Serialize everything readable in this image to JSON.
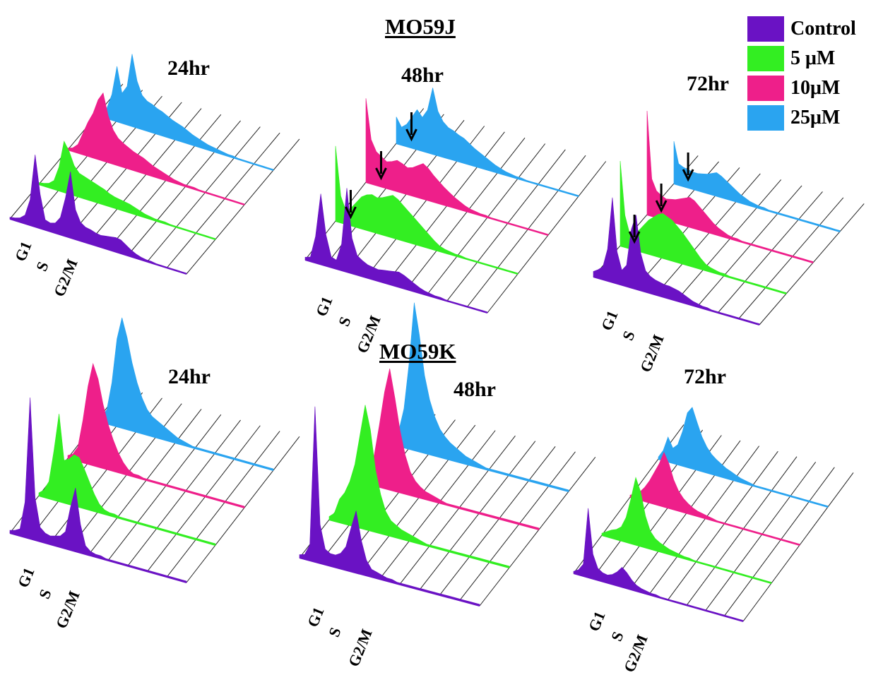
{
  "figure": {
    "titles": [
      "MO59J",
      "MO59K"
    ],
    "legend": [
      {
        "label": "Control",
        "color": "#6a12c4"
      },
      {
        "label": "5 μM",
        "color": "#33ee22"
      },
      {
        "label": "10μM",
        "color": "#ee1f8a"
      },
      {
        "label": "25μM",
        "color": "#2aa4f0"
      }
    ],
    "phase_labels": [
      "G1",
      "S",
      "G2/M"
    ]
  },
  "chart_data": [
    {
      "type": "area",
      "cell_line": "MO59J",
      "time_label": "24hr",
      "arrows": false,
      "series": [
        {
          "name": "Control",
          "values": [
            0.02,
            0.03,
            0.05,
            0.1,
            0.3,
            0.85,
            0.4,
            0.12,
            0.1,
            0.12,
            0.2,
            0.45,
            0.78,
            0.35,
            0.22,
            0.18,
            0.17,
            0.15,
            0.14,
            0.15,
            0.16,
            0.17,
            0.16,
            0.12,
            0.08,
            0.05,
            0.03,
            0.02,
            0.02,
            0.01,
            0.01,
            0.01,
            0.01,
            0.01,
            0.01,
            0.01
          ]
        },
        {
          "name": "5 μM",
          "values": [
            0.02,
            0.03,
            0.05,
            0.1,
            0.28,
            0.6,
            0.5,
            0.35,
            0.28,
            0.26,
            0.24,
            0.22,
            0.2,
            0.18,
            0.15,
            0.13,
            0.12,
            0.11,
            0.1,
            0.08,
            0.06,
            0.04,
            0.03,
            0.02,
            0.02,
            0.02,
            0.01,
            0.01,
            0.01,
            0.01,
            0.01,
            0.01,
            0.01,
            0.01,
            0.01,
            0.01
          ]
        },
        {
          "name": "10μM",
          "values": [
            0.02,
            0.04,
            0.1,
            0.25,
            0.4,
            0.52,
            0.7,
            0.8,
            0.55,
            0.4,
            0.32,
            0.28,
            0.25,
            0.22,
            0.2,
            0.18,
            0.15,
            0.12,
            0.1,
            0.08,
            0.06,
            0.04,
            0.03,
            0.02,
            0.02,
            0.02,
            0.01,
            0.01,
            0.01,
            0.01,
            0.01,
            0.01,
            0.01,
            0.01,
            0.01,
            0.01
          ]
        },
        {
          "name": "25μM",
          "values": [
            0.02,
            0.05,
            0.12,
            0.3,
            0.65,
            0.35,
            0.45,
            0.85,
            0.55,
            0.4,
            0.35,
            0.33,
            0.3,
            0.28,
            0.25,
            0.22,
            0.2,
            0.18,
            0.15,
            0.12,
            0.1,
            0.08,
            0.06,
            0.05,
            0.04,
            0.03,
            0.02,
            0.02,
            0.01,
            0.01,
            0.01,
            0.01,
            0.01,
            0.01,
            0.01,
            0.01
          ]
        }
      ]
    },
    {
      "type": "area",
      "cell_line": "MO59J",
      "time_label": "48hr",
      "arrows": true,
      "series": [
        {
          "name": "Control",
          "values": [
            0.03,
            0.05,
            0.3,
            0.8,
            0.35,
            0.12,
            0.1,
            0.3,
            0.95,
            0.4,
            0.22,
            0.18,
            0.15,
            0.14,
            0.13,
            0.14,
            0.15,
            0.16,
            0.17,
            0.15,
            0.12,
            0.09,
            0.06,
            0.04,
            0.03,
            0.02,
            0.02,
            0.01,
            0.01,
            0.01,
            0.01,
            0.01,
            0.01,
            0.01,
            0.01,
            0.01
          ]
        },
        {
          "name": "5 μM",
          "values": [
            0.85,
            0.3,
            0.15,
            0.2,
            0.28,
            0.36,
            0.4,
            0.42,
            0.4,
            0.42,
            0.45,
            0.48,
            0.45,
            0.4,
            0.35,
            0.3,
            0.25,
            0.2,
            0.15,
            0.1,
            0.06,
            0.04,
            0.03,
            0.02,
            0.02,
            0.01,
            0.01,
            0.01,
            0.01,
            0.01,
            0.01,
            0.01,
            0.01,
            0.01,
            0.01,
            0.01
          ]
        },
        {
          "name": "10μM",
          "values": [
            0.95,
            0.5,
            0.38,
            0.34,
            0.3,
            0.32,
            0.35,
            0.33,
            0.3,
            0.32,
            0.36,
            0.4,
            0.36,
            0.3,
            0.25,
            0.2,
            0.16,
            0.12,
            0.09,
            0.06,
            0.04,
            0.03,
            0.02,
            0.02,
            0.01,
            0.01,
            0.01,
            0.01,
            0.01,
            0.01,
            0.01,
            0.01,
            0.01,
            0.01,
            0.01,
            0.01
          ]
        },
        {
          "name": "25μM",
          "values": [
            0.3,
            0.2,
            0.25,
            0.35,
            0.45,
            0.38,
            0.48,
            0.75,
            0.5,
            0.4,
            0.35,
            0.33,
            0.3,
            0.28,
            0.24,
            0.2,
            0.17,
            0.14,
            0.11,
            0.08,
            0.06,
            0.04,
            0.03,
            0.02,
            0.02,
            0.01,
            0.01,
            0.01,
            0.01,
            0.01,
            0.01,
            0.01,
            0.01,
            0.01,
            0.01,
            0.01
          ]
        }
      ]
    },
    {
      "type": "area",
      "cell_line": "MO59J",
      "time_label": "72hr",
      "arrows": true,
      "series": [
        {
          "name": "Control",
          "values": [
            0.05,
            0.08,
            0.12,
            0.3,
            0.8,
            0.3,
            0.14,
            0.2,
            0.55,
            0.7,
            0.35,
            0.2,
            0.16,
            0.14,
            0.13,
            0.12,
            0.12,
            0.11,
            0.1,
            0.08,
            0.06,
            0.04,
            0.03,
            0.02,
            0.02,
            0.01,
            0.01,
            0.01,
            0.01,
            0.01,
            0.01,
            0.01,
            0.01,
            0.01,
            0.01,
            0.01
          ]
        },
        {
          "name": "5 μM",
          "values": [
            0.8,
            0.3,
            0.14,
            0.15,
            0.2,
            0.26,
            0.32,
            0.36,
            0.4,
            0.42,
            0.4,
            0.38,
            0.34,
            0.3,
            0.25,
            0.2,
            0.15,
            0.1,
            0.06,
            0.04,
            0.03,
            0.02,
            0.02,
            0.01,
            0.01,
            0.01,
            0.01,
            0.01,
            0.01,
            0.01,
            0.01,
            0.01,
            0.01,
            0.01,
            0.01,
            0.01
          ]
        },
        {
          "name": "10μM",
          "values": [
            0.98,
            0.35,
            0.25,
            0.22,
            0.2,
            0.21,
            0.22,
            0.24,
            0.26,
            0.28,
            0.26,
            0.22,
            0.18,
            0.14,
            0.1,
            0.07,
            0.05,
            0.03,
            0.02,
            0.02,
            0.01,
            0.01,
            0.01,
            0.01,
            0.01,
            0.01,
            0.01,
            0.01,
            0.01,
            0.01,
            0.01,
            0.01,
            0.01,
            0.01,
            0.01,
            0.01
          ]
        },
        {
          "name": "25μM",
          "values": [
            0.4,
            0.2,
            0.18,
            0.17,
            0.16,
            0.16,
            0.17,
            0.18,
            0.2,
            0.22,
            0.2,
            0.17,
            0.14,
            0.11,
            0.08,
            0.06,
            0.04,
            0.03,
            0.02,
            0.02,
            0.01,
            0.01,
            0.01,
            0.01,
            0.01,
            0.01,
            0.01,
            0.01,
            0.01,
            0.01,
            0.01,
            0.01,
            0.01,
            0.01,
            0.01,
            0.01
          ]
        }
      ]
    },
    {
      "type": "area",
      "cell_line": "MO59K",
      "time_label": "24hr",
      "arrows": false,
      "series": [
        {
          "name": "Control",
          "values": [
            0.02,
            0.03,
            0.05,
            0.25,
            1.0,
            0.3,
            0.1,
            0.07,
            0.06,
            0.07,
            0.08,
            0.12,
            0.3,
            0.45,
            0.2,
            0.06,
            0.03,
            0.02,
            0.02,
            0.01,
            0.01,
            0.01,
            0.01,
            0.01,
            0.01,
            0.01,
            0.01,
            0.01,
            0.01,
            0.01,
            0.01,
            0.01,
            0.01,
            0.01,
            0.01,
            0.01
          ]
        },
        {
          "name": "5 μM",
          "values": [
            0.02,
            0.05,
            0.12,
            0.35,
            0.62,
            0.3,
            0.32,
            0.36,
            0.35,
            0.28,
            0.2,
            0.12,
            0.06,
            0.03,
            0.02,
            0.02,
            0.01,
            0.01,
            0.01,
            0.01,
            0.01,
            0.01,
            0.01,
            0.01,
            0.01,
            0.01,
            0.01,
            0.01,
            0.01,
            0.01,
            0.01,
            0.01,
            0.01,
            0.01,
            0.01,
            0.01
          ]
        },
        {
          "name": "10μM",
          "values": [
            0.02,
            0.04,
            0.1,
            0.3,
            0.55,
            0.72,
            0.62,
            0.45,
            0.32,
            0.22,
            0.14,
            0.08,
            0.04,
            0.02,
            0.02,
            0.01,
            0.01,
            0.01,
            0.01,
            0.01,
            0.01,
            0.01,
            0.01,
            0.01,
            0.01,
            0.01,
            0.01,
            0.01,
            0.01,
            0.01,
            0.01,
            0.01,
            0.01,
            0.01,
            0.01,
            0.01
          ]
        },
        {
          "name": "25μM",
          "values": [
            0.02,
            0.04,
            0.1,
            0.3,
            0.62,
            0.78,
            0.65,
            0.48,
            0.35,
            0.25,
            0.18,
            0.14,
            0.12,
            0.1,
            0.08,
            0.06,
            0.04,
            0.03,
            0.02,
            0.01,
            0.01,
            0.01,
            0.01,
            0.01,
            0.01,
            0.01,
            0.01,
            0.01,
            0.01,
            0.01,
            0.01,
            0.01,
            0.01,
            0.01,
            0.01,
            0.01
          ]
        }
      ]
    },
    {
      "type": "area",
      "cell_line": "MO59K",
      "time_label": "48hr",
      "arrows": false,
      "series": [
        {
          "name": "Control",
          "values": [
            0.02,
            0.03,
            0.1,
            1.0,
            0.25,
            0.1,
            0.08,
            0.08,
            0.1,
            0.15,
            0.28,
            0.4,
            0.22,
            0.1,
            0.05,
            0.04,
            0.03,
            0.02,
            0.02,
            0.01,
            0.01,
            0.01,
            0.01,
            0.01,
            0.01,
            0.01,
            0.01,
            0.01,
            0.01,
            0.01,
            0.01,
            0.01,
            0.01,
            0.01,
            0.01,
            0.01
          ]
        },
        {
          "name": "5 μM",
          "values": [
            0.02,
            0.05,
            0.15,
            0.2,
            0.28,
            0.4,
            0.6,
            0.8,
            0.65,
            0.4,
            0.25,
            0.15,
            0.1,
            0.08,
            0.06,
            0.05,
            0.04,
            0.03,
            0.02,
            0.01,
            0.01,
            0.01,
            0.01,
            0.01,
            0.01,
            0.01,
            0.01,
            0.01,
            0.01,
            0.01,
            0.01,
            0.01,
            0.01,
            0.01,
            0.01,
            0.01
          ]
        },
        {
          "name": "10μM",
          "values": [
            0.02,
            0.04,
            0.08,
            0.2,
            0.4,
            0.62,
            0.78,
            0.6,
            0.4,
            0.25,
            0.15,
            0.1,
            0.07,
            0.05,
            0.04,
            0.03,
            0.02,
            0.01,
            0.01,
            0.01,
            0.01,
            0.01,
            0.01,
            0.01,
            0.01,
            0.01,
            0.01,
            0.01,
            0.01,
            0.01,
            0.01,
            0.01,
            0.01,
            0.01,
            0.01,
            0.01
          ]
        },
        {
          "name": "25μM",
          "values": [
            0.02,
            0.04,
            0.1,
            0.25,
            0.55,
            0.95,
            0.75,
            0.5,
            0.35,
            0.25,
            0.18,
            0.14,
            0.11,
            0.09,
            0.07,
            0.05,
            0.04,
            0.03,
            0.02,
            0.01,
            0.01,
            0.01,
            0.01,
            0.01,
            0.01,
            0.01,
            0.01,
            0.01,
            0.01,
            0.01,
            0.01,
            0.01,
            0.01,
            0.01,
            0.01,
            0.01
          ]
        }
      ]
    },
    {
      "type": "area",
      "cell_line": "MO59K",
      "time_label": "72hr",
      "arrows": false,
      "series": [
        {
          "name": "Control",
          "values": [
            0.02,
            0.05,
            0.12,
            0.7,
            0.25,
            0.12,
            0.09,
            0.08,
            0.1,
            0.14,
            0.2,
            0.16,
            0.1,
            0.06,
            0.04,
            0.03,
            0.02,
            0.02,
            0.01,
            0.01,
            0.01,
            0.01,
            0.01,
            0.01,
            0.01,
            0.01,
            0.01,
            0.01,
            0.01,
            0.01,
            0.01,
            0.01,
            0.01,
            0.01,
            0.01,
            0.01
          ]
        },
        {
          "name": "5 μM",
          "values": [
            0.02,
            0.05,
            0.08,
            0.1,
            0.14,
            0.25,
            0.45,
            0.68,
            0.55,
            0.32,
            0.18,
            0.12,
            0.09,
            0.07,
            0.05,
            0.04,
            0.03,
            0.02,
            0.02,
            0.01,
            0.01,
            0.01,
            0.01,
            0.01,
            0.01,
            0.01,
            0.01,
            0.01,
            0.01,
            0.01,
            0.01,
            0.01,
            0.01,
            0.01,
            0.01,
            0.01
          ]
        },
        {
          "name": "10μM",
          "values": [
            0.02,
            0.04,
            0.08,
            0.14,
            0.22,
            0.32,
            0.42,
            0.55,
            0.45,
            0.3,
            0.2,
            0.14,
            0.1,
            0.07,
            0.05,
            0.04,
            0.03,
            0.02,
            0.01,
            0.01,
            0.01,
            0.01,
            0.01,
            0.01,
            0.01,
            0.01,
            0.01,
            0.01,
            0.01,
            0.01,
            0.01,
            0.01,
            0.01,
            0.01,
            0.01,
            0.01
          ]
        },
        {
          "name": "25μM",
          "values": [
            0.02,
            0.1,
            0.25,
            0.15,
            0.2,
            0.35,
            0.55,
            0.62,
            0.48,
            0.35,
            0.26,
            0.2,
            0.16,
            0.13,
            0.1,
            0.08,
            0.06,
            0.04,
            0.03,
            0.02,
            0.01,
            0.01,
            0.01,
            0.01,
            0.01,
            0.01,
            0.01,
            0.01,
            0.01,
            0.01,
            0.01,
            0.01,
            0.01,
            0.01,
            0.01,
            0.01
          ]
        }
      ]
    }
  ]
}
